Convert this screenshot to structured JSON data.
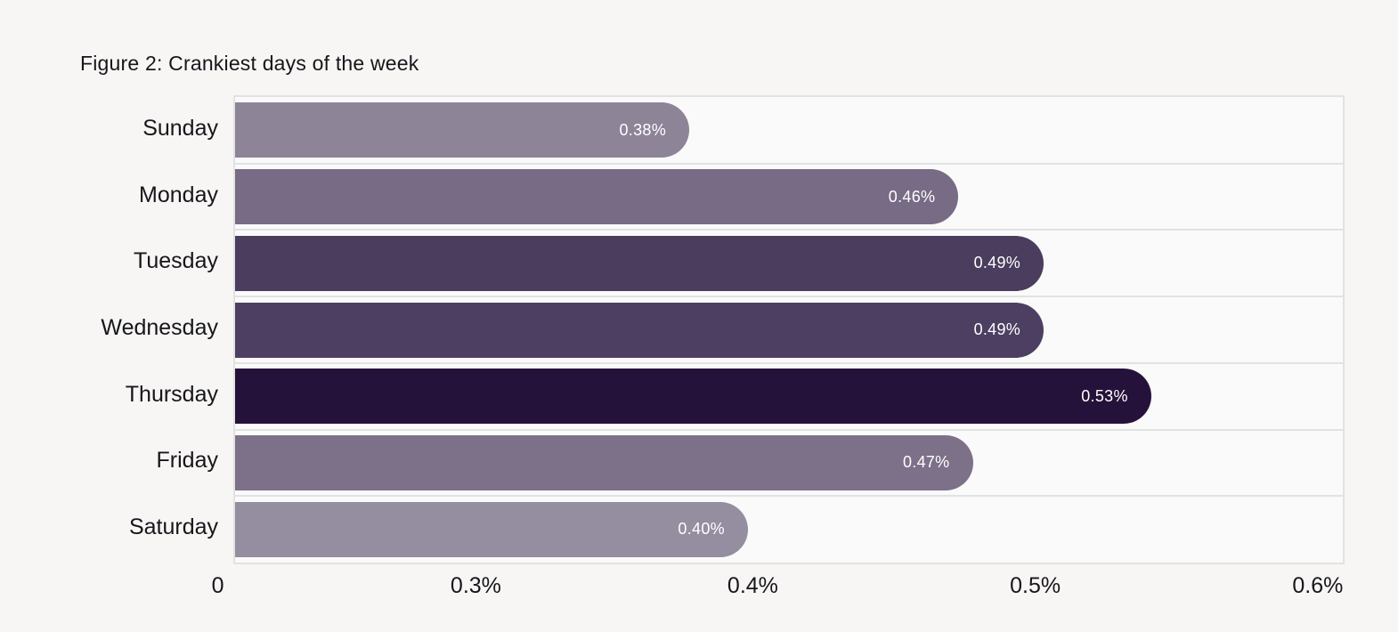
{
  "title": "Figure 2: Crankiest days of the week",
  "colors": {
    "page_bg": "#f7f6f5",
    "plot_bg": "#fafafa",
    "plot_border": "#e3e2e3",
    "grid_line": "#e3e2e3",
    "text": "#17161a",
    "bar_label_text": "#ffffff"
  },
  "chart_data": {
    "type": "bar",
    "orientation": "horizontal",
    "title": "Figure 2: Crankiest days of the week",
    "categories": [
      "Sunday",
      "Monday",
      "Tuesday",
      "Wednesday",
      "Thursday",
      "Friday",
      "Saturday"
    ],
    "values": [
      0.38,
      0.46,
      0.49,
      0.49,
      0.53,
      0.47,
      0.4
    ],
    "value_labels": [
      "0.38%",
      "0.46%",
      "0.49%",
      "0.49%",
      "0.53%",
      "0.47%",
      "0.40%"
    ],
    "bar_colors": [
      "#8d8498",
      "#776b85",
      "#4a3d5e",
      "#4d3f62",
      "#25123a",
      "#7d7189",
      "#958da0"
    ],
    "bar_length_pct": [
      41.0,
      65.3,
      73.0,
      73.0,
      82.7,
      66.6,
      46.3
    ],
    "x_axis": {
      "tick_labels": [
        "0",
        "0.3%",
        "0.4%",
        "0.5%",
        "0.6%"
      ],
      "tick_pos_pct": [
        -1.4,
        21.9,
        46.9,
        72.4,
        97.9
      ],
      "note_scale": "ticks evenly spaced, axis compressed between 0 and 0.3%"
    },
    "ylabel": "",
    "xlabel": "",
    "grid": "horizontal row separators only",
    "legend": "none",
    "value_label_position": "inside-end",
    "bar_cap": "rounded-right"
  }
}
